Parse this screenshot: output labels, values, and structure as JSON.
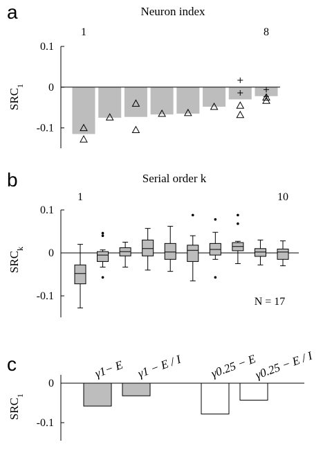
{
  "chart_data": [
    {
      "panel": "a",
      "type": "bar",
      "top_axis_label": "Neuron index",
      "top_tick_labels": [
        "1",
        "8"
      ],
      "ylabel": "SRC",
      "ylabel_sub": "1",
      "ylim": [
        -0.15,
        0.1
      ],
      "y_ticks": [
        0.1,
        0,
        -0.1
      ],
      "y_tick_labels": [
        "0.1",
        "0",
        "-0.1"
      ],
      "categories": [
        1,
        2,
        3,
        4,
        5,
        6,
        7,
        8
      ],
      "values": [
        -0.115,
        -0.075,
        -0.073,
        -0.067,
        -0.065,
        -0.048,
        -0.03,
        -0.022
      ],
      "triangle_markers": [
        {
          "x": 1,
          "y": -0.1
        },
        {
          "x": 1,
          "y": -0.128
        },
        {
          "x": 2,
          "y": -0.074
        },
        {
          "x": 3,
          "y": -0.04
        },
        {
          "x": 3,
          "y": -0.105
        },
        {
          "x": 4,
          "y": -0.065
        },
        {
          "x": 5,
          "y": -0.063
        },
        {
          "x": 6,
          "y": -0.048
        },
        {
          "x": 7,
          "y": -0.045
        },
        {
          "x": 7,
          "y": -0.068
        },
        {
          "x": 8,
          "y": -0.025
        },
        {
          "x": 8,
          "y": -0.033
        }
      ],
      "plus_markers": [
        {
          "x": 7,
          "y": 0.017
        },
        {
          "x": 7,
          "y": -0.014
        },
        {
          "x": 8,
          "y": -0.006
        },
        {
          "x": 8,
          "y": -0.023
        }
      ],
      "bar_color": "#bdbdbd"
    },
    {
      "panel": "b",
      "type": "box",
      "top_axis_label": "Serial order k",
      "top_tick_labels": [
        "1",
        "10"
      ],
      "ylabel": "SRC",
      "ylabel_sub": "k",
      "ylim": [
        -0.15,
        0.1
      ],
      "y_ticks": [
        0.1,
        0,
        -0.1
      ],
      "y_tick_labels": [
        "0.1",
        "0",
        "-0.1"
      ],
      "annotation": "N = 17",
      "boxes": [
        {
          "k": 1,
          "whisker_low": -0.128,
          "q1": -0.072,
          "median": -0.048,
          "q3": -0.028,
          "whisker_high": 0.02,
          "outliers": []
        },
        {
          "k": 2,
          "whisker_low": -0.033,
          "q1": -0.02,
          "median": -0.005,
          "q3": 0.003,
          "whisker_high": 0.007,
          "outliers": [
            0.046,
            0.04,
            -0.057
          ]
        },
        {
          "k": 3,
          "whisker_low": -0.033,
          "q1": -0.007,
          "median": 0.003,
          "q3": 0.012,
          "whisker_high": 0.025,
          "outliers": []
        },
        {
          "k": 4,
          "whisker_low": -0.04,
          "q1": -0.007,
          "median": 0.01,
          "q3": 0.03,
          "whisker_high": 0.057,
          "outliers": []
        },
        {
          "k": 5,
          "whisker_low": -0.043,
          "q1": -0.015,
          "median": 0.002,
          "q3": 0.022,
          "whisker_high": 0.062,
          "outliers": []
        },
        {
          "k": 6,
          "whisker_low": -0.065,
          "q1": -0.02,
          "median": 0.006,
          "q3": 0.018,
          "whisker_high": 0.04,
          "outliers": [
            0.088
          ]
        },
        {
          "k": 7,
          "whisker_low": -0.015,
          "q1": -0.005,
          "median": 0.008,
          "q3": 0.022,
          "whisker_high": 0.048,
          "outliers": [
            0.078,
            -0.057
          ]
        },
        {
          "k": 8,
          "whisker_low": -0.025,
          "q1": 0.005,
          "median": 0.015,
          "q3": 0.024,
          "whisker_high": 0.027,
          "outliers": [
            0.088,
            0.068
          ]
        },
        {
          "k": 9,
          "whisker_low": -0.028,
          "q1": -0.008,
          "median": 0.002,
          "q3": 0.01,
          "whisker_high": 0.03,
          "outliers": []
        },
        {
          "k": 10,
          "whisker_low": -0.03,
          "q1": -0.015,
          "median": 0.002,
          "q3": 0.009,
          "whisker_high": 0.028,
          "outliers": []
        }
      ],
      "box_color": "#bdbdbd"
    },
    {
      "panel": "c",
      "type": "bar",
      "ylabel": "SRC",
      "ylabel_sub": "1",
      "ylim": [
        -0.1,
        0.0
      ],
      "y_ticks": [
        0,
        -0.1
      ],
      "y_tick_labels": [
        "0",
        "-0.1"
      ],
      "categories": [
        "γ1− E",
        "γ1 − E / I",
        "γ0.25 − E",
        "γ0.25 − E / I"
      ],
      "values": [
        -0.058,
        -0.032,
        -0.078,
        -0.043
      ],
      "fills": [
        "#bdbdbd",
        "#bdbdbd",
        "#ffffff",
        "#ffffff"
      ]
    }
  ],
  "panel_letters": [
    "a",
    "b",
    "c"
  ]
}
